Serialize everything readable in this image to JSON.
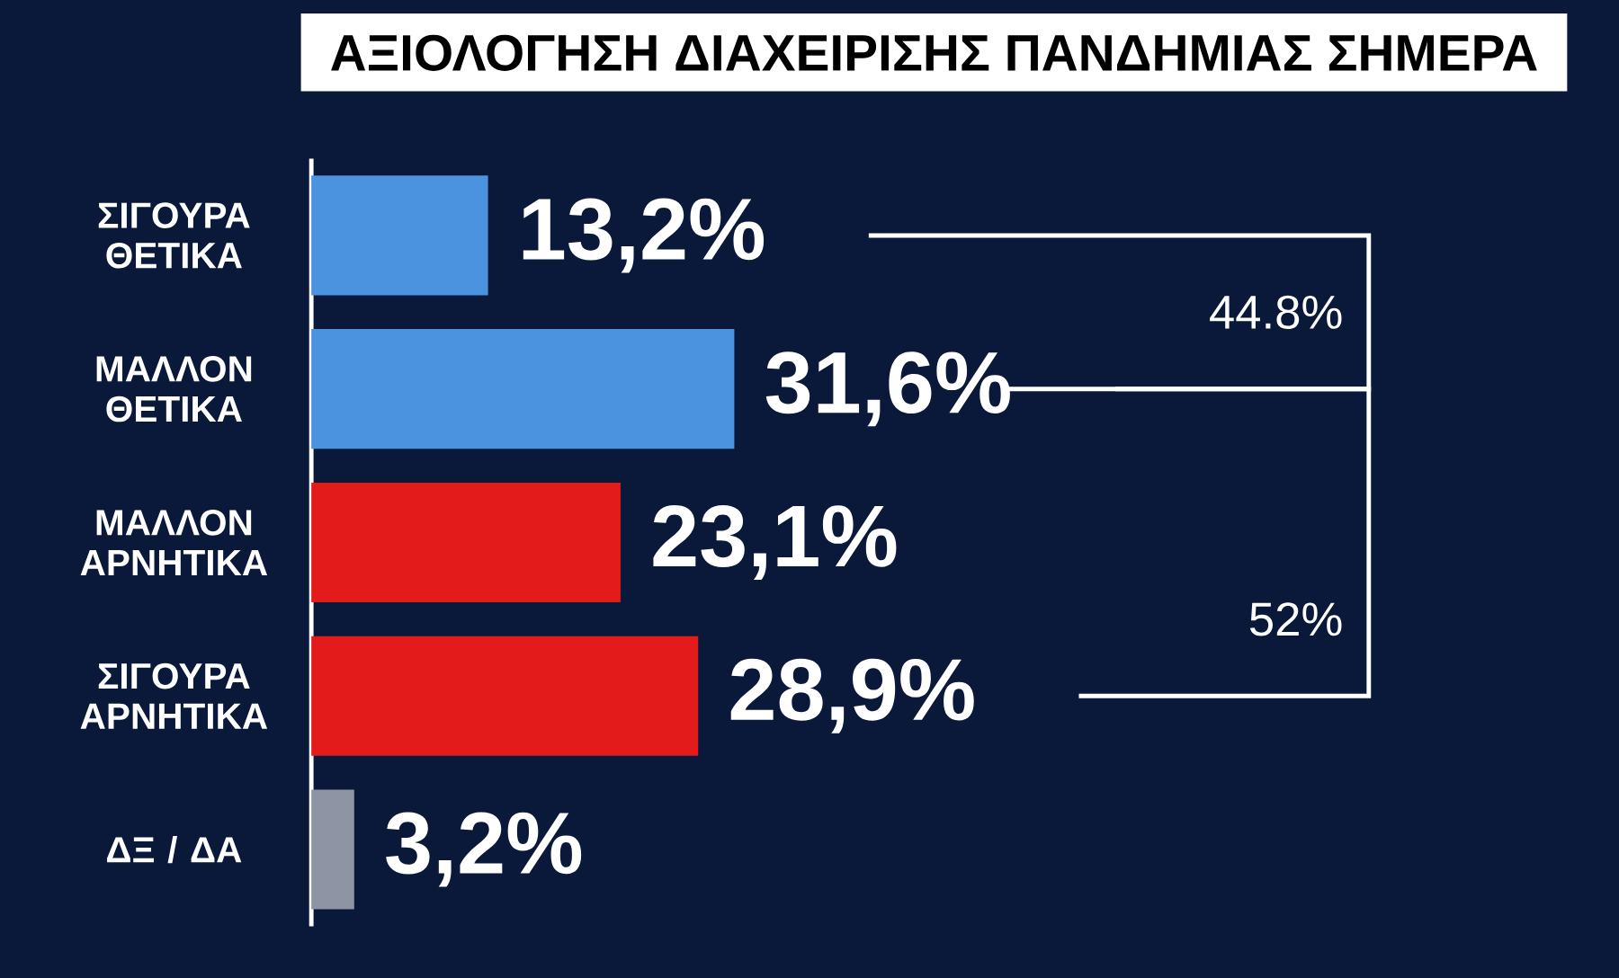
{
  "chart_data": {
    "type": "bar",
    "orientation": "horizontal",
    "title": "ΑΞΙΟΛΟΓΗΣΗ ΔΙΑΧΕΙΡΙΣΗΣ ΠΑΝΔΗΜΙΑΣ ΣΗΜΕΡΑ",
    "categories": [
      "ΣΙΓΟΥΡΑ ΘΕΤΙΚΑ",
      "ΜΑΛΛΟΝ ΘΕΤΙΚΑ",
      "ΜΑΛΛΟΝ ΑΡΝΗΤΙΚΑ",
      "ΣΙΓΟΥΡΑ ΑΡΝΗΤΙΚΑ",
      "ΔΞ / ΔΑ"
    ],
    "values": [
      13.2,
      31.6,
      23.1,
      28.9,
      3.2
    ],
    "value_labels": [
      "13,2%",
      "31,6%",
      "23,1%",
      "28,9%",
      "3,2%"
    ],
    "colors": [
      "#4b93de",
      "#4b93de",
      "#e31b1b",
      "#e31b1b",
      "#8e94a3"
    ],
    "annotations": [
      "44.8%",
      "52%"
    ],
    "tick_labels": "y"
  }
}
